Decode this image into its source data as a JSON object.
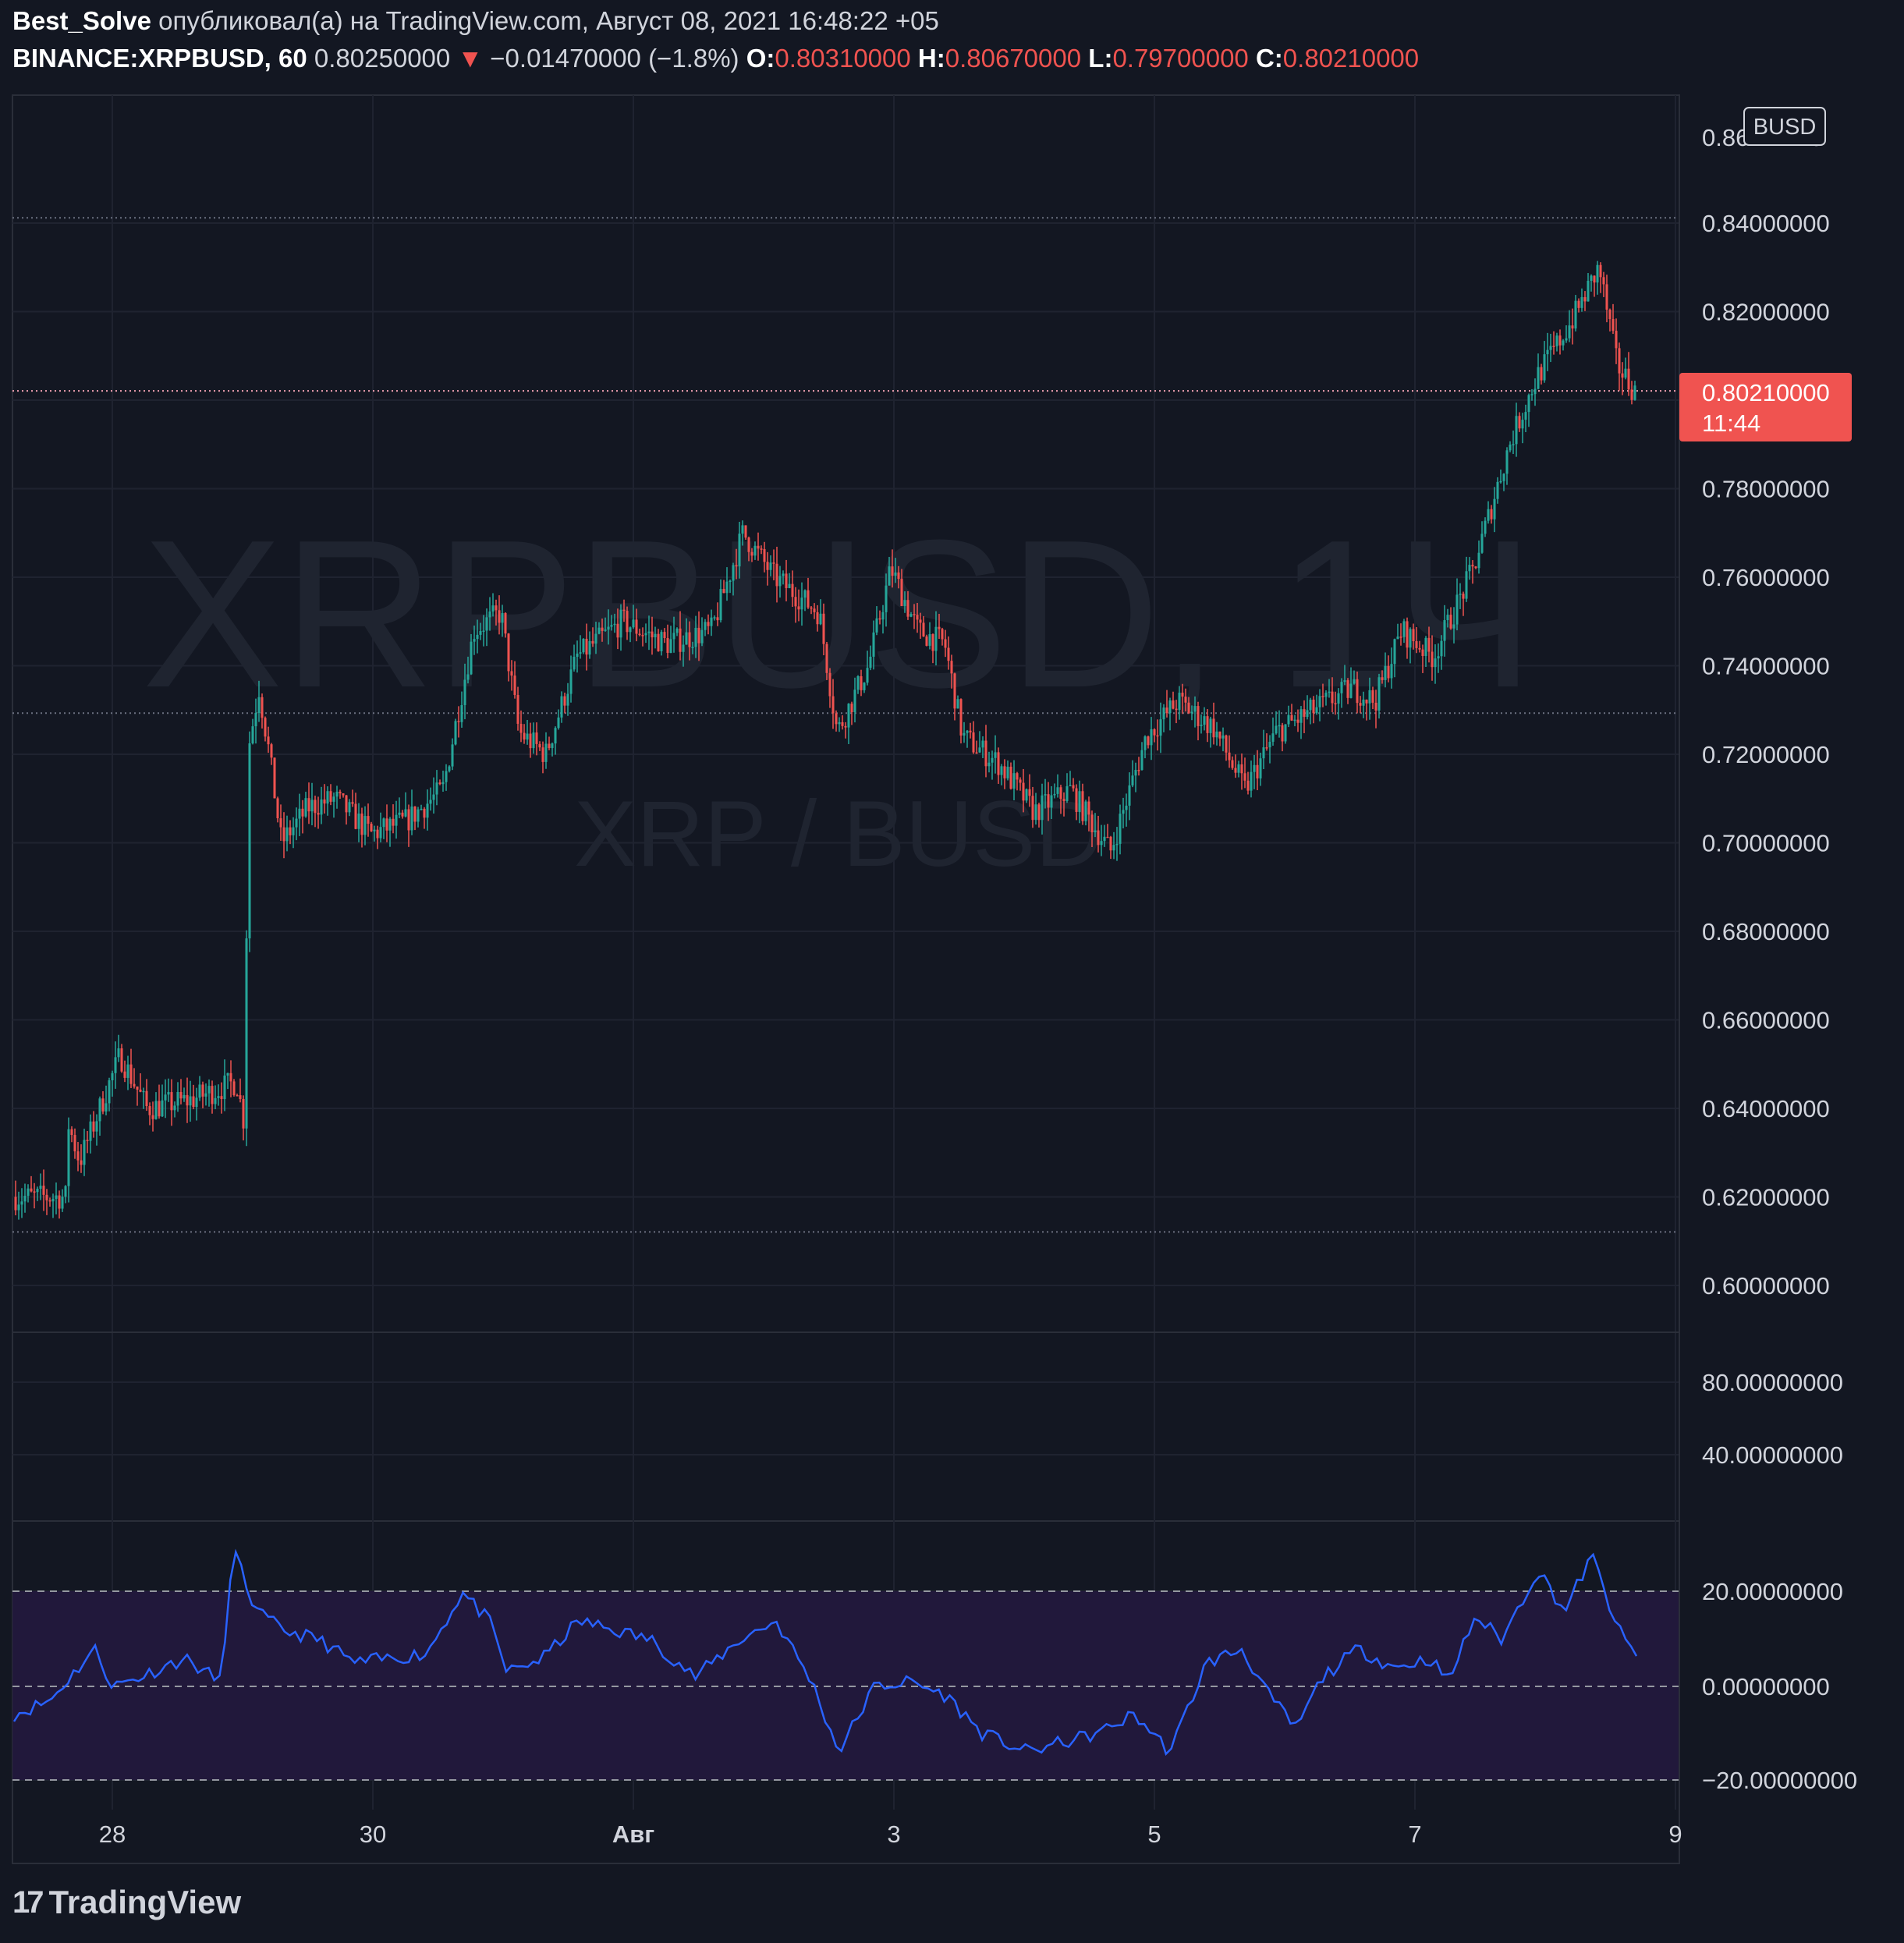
{
  "header": {
    "author": "Best_Solve",
    "published_text": "опубликовал(а) на TradingView.com, Август 08, 2021 16:48:22 +05",
    "symbol": "BINANCE:XRPBUSD, 60",
    "last_price": "0.80250000",
    "change_arrow": "▼",
    "change": "−0.01470000 (−1.8%)",
    "open_label": "O:",
    "open": "0.80310000",
    "high_label": "H:",
    "high": "0.80670000",
    "low_label": "L:",
    "low": "0.79700000",
    "close_label": "C:",
    "close": "0.80210000"
  },
  "colors": {
    "background": "#131722",
    "up": "#26a69a",
    "down": "#ef5350",
    "grid": "#1f2330",
    "oscillator_line": "#2962ff",
    "oscillator_band": "#21183b",
    "price_tag": "#f05350"
  },
  "watermark": {
    "main": "XRPBUSD, 1Ч",
    "sub": "XRP / BUSD"
  },
  "price_axis": {
    "currency_badge": "BUSD",
    "current_price_tag": "0.80210000",
    "countdown": "11:44",
    "top_partial_label": "0.86",
    "top_partial_label_end": "0"
  },
  "footer": {
    "brand": "TradingView",
    "logo_icon": "tradingview-logo-icon"
  },
  "chart_data": {
    "type": "candlestick",
    "timeframe": "60",
    "price_ylim": [
      0.59,
      0.87
    ],
    "price_ticks": [
      "0.84000000",
      "0.82000000",
      "0.80000000",
      "0.78000000",
      "0.76000000",
      "0.74000000",
      "0.72000000",
      "0.70000000",
      "0.68000000",
      "0.66000000",
      "0.64000000",
      "0.62000000",
      "0.60000000"
    ],
    "x_tick_labels": [
      "28",
      "30",
      "Авг",
      "3",
      "5",
      "7",
      "9"
    ],
    "reference_levels": [
      0.8412,
      0.8021,
      0.7293,
      0.6121
    ],
    "price_path": [
      [
        0.625,
        0.62
      ],
      [
        0.6,
        0.638
      ],
      [
        0.75,
        0.628
      ],
      [
        1.2,
        0.652
      ],
      [
        1.5,
        0.64
      ],
      [
        2.0,
        0.642
      ],
      [
        2.5,
        0.646
      ],
      [
        2.6,
        0.635
      ],
      [
        2.62,
        0.72
      ],
      [
        2.75,
        0.735
      ],
      [
        2.85,
        0.722
      ],
      [
        3.0,
        0.7
      ],
      [
        3.3,
        0.708
      ],
      [
        3.6,
        0.71
      ],
      [
        4.0,
        0.702
      ],
      [
        4.4,
        0.705
      ],
      [
        4.8,
        0.712
      ],
      [
        5.15,
        0.748
      ],
      [
        5.45,
        0.752
      ],
      [
        5.65,
        0.725
      ],
      [
        5.95,
        0.72
      ],
      [
        6.3,
        0.742
      ],
      [
        6.8,
        0.75
      ],
      [
        7.3,
        0.745
      ],
      [
        7.8,
        0.748
      ],
      [
        8.15,
        0.77
      ],
      [
        8.5,
        0.76
      ],
      [
        9.0,
        0.752
      ],
      [
        9.2,
        0.725
      ],
      [
        9.55,
        0.74
      ],
      [
        9.8,
        0.762
      ],
      [
        10.1,
        0.748
      ],
      [
        10.4,
        0.745
      ],
      [
        10.6,
        0.724
      ],
      [
        11.0,
        0.718
      ],
      [
        11.4,
        0.707
      ],
      [
        11.8,
        0.712
      ],
      [
        12.25,
        0.698
      ],
      [
        12.65,
        0.724
      ],
      [
        13.0,
        0.732
      ],
      [
        13.4,
        0.726
      ],
      [
        13.75,
        0.712
      ],
      [
        14.1,
        0.725
      ],
      [
        14.6,
        0.731
      ],
      [
        14.95,
        0.735
      ],
      [
        15.2,
        0.732
      ],
      [
        15.5,
        0.748
      ],
      [
        15.85,
        0.742
      ],
      [
        16.3,
        0.762
      ],
      [
        16.7,
        0.79
      ],
      [
        17.0,
        0.805
      ],
      [
        17.4,
        0.818
      ],
      [
        17.7,
        0.83
      ],
      [
        17.9,
        0.808
      ],
      [
        18.1,
        0.802
      ]
    ],
    "oscillator": {
      "ylim": [
        -22,
        30
      ],
      "ticks": [
        "80.00000000",
        "40.00000000",
        "20.00000000",
        "0.00000000",
        "−20.00000000"
      ],
      "levels": [
        20,
        0,
        -20
      ],
      "band": [
        -20,
        20
      ],
      "path": [
        [
          0.0,
          -6
        ],
        [
          0.4,
          -3
        ],
        [
          0.9,
          8
        ],
        [
          1.1,
          0
        ],
        [
          1.4,
          2
        ],
        [
          1.9,
          6
        ],
        [
          2.3,
          1
        ],
        [
          2.45,
          29
        ],
        [
          2.7,
          16
        ],
        [
          3.0,
          12
        ],
        [
          3.4,
          10
        ],
        [
          3.8,
          5
        ],
        [
          4.2,
          6
        ],
        [
          4.6,
          7
        ],
        [
          5.0,
          20
        ],
        [
          5.3,
          14
        ],
        [
          5.5,
          3
        ],
        [
          5.9,
          6
        ],
        [
          6.3,
          14
        ],
        [
          6.7,
          12
        ],
        [
          7.1,
          10
        ],
        [
          7.6,
          2
        ],
        [
          8.1,
          10
        ],
        [
          8.5,
          14
        ],
        [
          8.9,
          1
        ],
        [
          9.2,
          -14
        ],
        [
          9.6,
          0
        ],
        [
          10.0,
          1
        ],
        [
          10.4,
          -2
        ],
        [
          10.8,
          -10
        ],
        [
          11.3,
          -14
        ],
        [
          11.7,
          -12
        ],
        [
          12.1,
          -10
        ],
        [
          12.5,
          -6
        ],
        [
          12.9,
          -14
        ],
        [
          13.3,
          5
        ],
        [
          13.7,
          8
        ],
        [
          14.0,
          -2
        ],
        [
          14.3,
          -9
        ],
        [
          14.6,
          2
        ],
        [
          15.0,
          8
        ],
        [
          15.4,
          4
        ],
        [
          15.8,
          6
        ],
        [
          16.0,
          1
        ],
        [
          16.3,
          15
        ],
        [
          16.6,
          10
        ],
        [
          17.0,
          25
        ],
        [
          17.3,
          16
        ],
        [
          17.6,
          28
        ],
        [
          17.9,
          12
        ],
        [
          18.1,
          6
        ]
      ]
    }
  }
}
